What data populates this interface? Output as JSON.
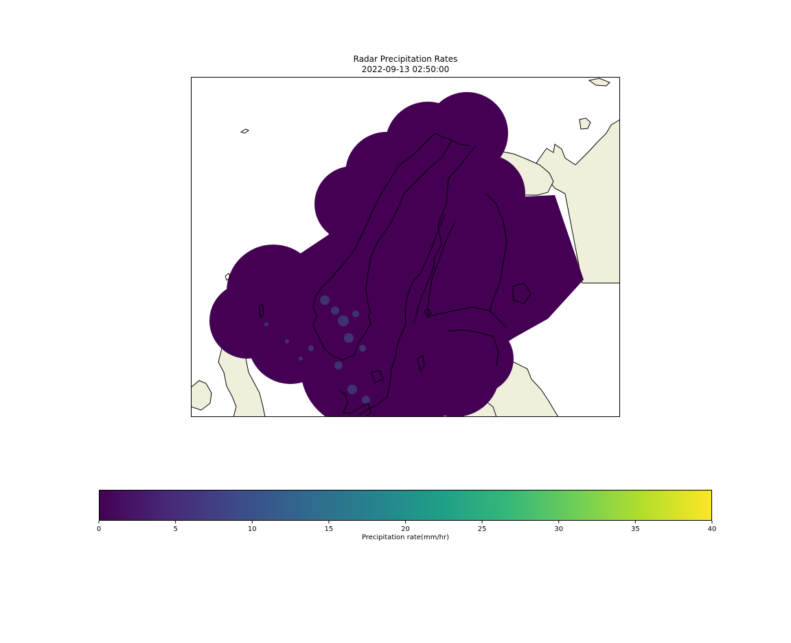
{
  "figure": {
    "title_line1": "Radar Precipitation Rates",
    "title_line2": "2022-09-13 02:50:00"
  },
  "colorbar": {
    "label": "Precipitation rate(mm/hr)",
    "min": 0,
    "max": 40,
    "ticks": [
      "0",
      "5",
      "10",
      "15",
      "20",
      "25",
      "30",
      "35",
      "40"
    ],
    "colormap": "viridis",
    "stops": [
      "#440154",
      "#482878",
      "#3e4989",
      "#31688e",
      "#26828e",
      "#1f9e89",
      "#35b779",
      "#6ece58",
      "#b5de2b",
      "#fde725"
    ]
  },
  "map": {
    "land_color": "#efefdb",
    "ocean_color": "#ffffff",
    "coastline_color": "#000000",
    "radar_composite_color": "#440154",
    "precip_highlight_color": "#3b5a8a",
    "region": "Nordic countries"
  }
}
